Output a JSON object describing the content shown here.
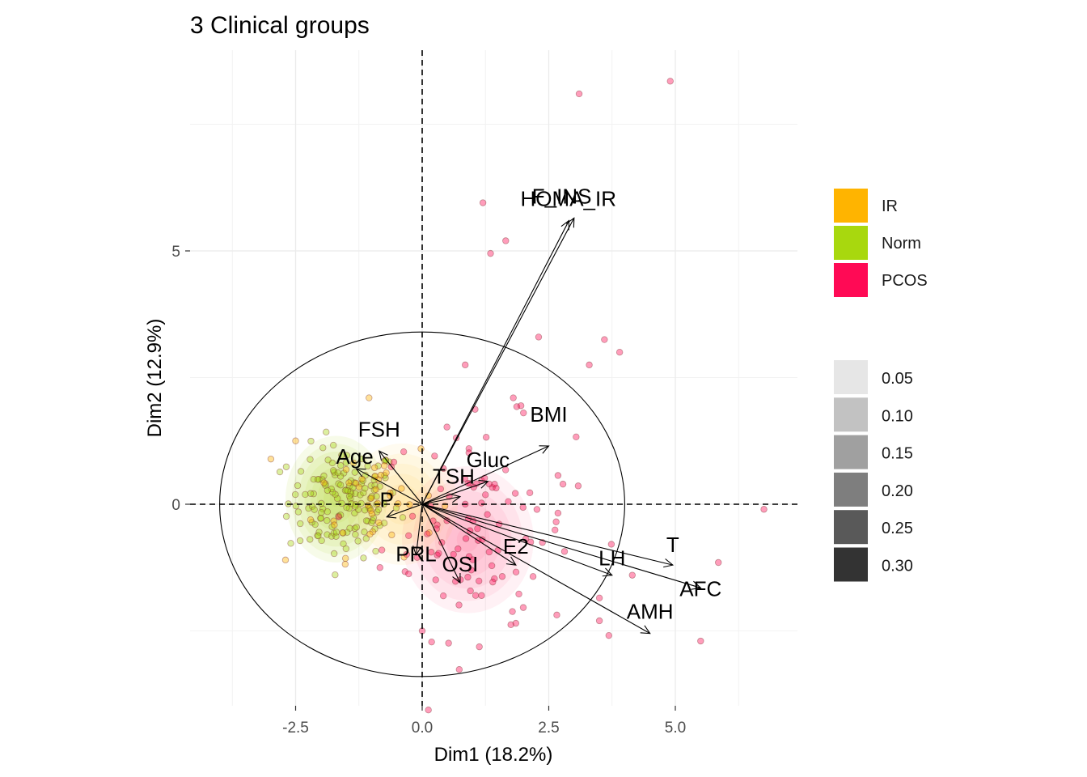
{
  "chart_data": {
    "type": "scatter",
    "title": "3 Clinical groups",
    "xlabel": "Dim1 (18.2%)",
    "ylabel": "Dim2 (12.9%)",
    "xlim": [
      -3.7,
      7.4
    ],
    "ylim": [
      -4.0,
      9.0
    ],
    "x_ticks": [
      -2.5,
      0.0,
      2.5,
      5.0
    ],
    "x_tick_labels": [
      "-2.5",
      "0.0",
      "2.5",
      "5.0"
    ],
    "y_ticks": [
      0,
      5
    ],
    "y_tick_labels": [
      "0",
      "5"
    ],
    "grid": true,
    "legend_position": "right",
    "correlation_circle": {
      "cx": 0.0,
      "cy": 0.0,
      "radius_x": 4.0,
      "radius_y": 3.4
    },
    "group_legend": [
      {
        "name": "IR",
        "color": "#FFB400"
      },
      {
        "name": "Norm",
        "color": "#A8D80E"
      },
      {
        "name": "PCOS",
        "color": "#FF0A55"
      }
    ],
    "density_legend": [
      {
        "level": "0.05",
        "color": "#e6e6e6"
      },
      {
        "level": "0.10",
        "color": "#c2c2c2"
      },
      {
        "level": "0.15",
        "color": "#a0a0a0"
      },
      {
        "level": "0.20",
        "color": "#7e7e7e"
      },
      {
        "level": "0.25",
        "color": "#595959"
      },
      {
        "level": "0.30",
        "color": "#333333"
      }
    ],
    "variables": [
      {
        "name": "HOMA_IR",
        "x": 2.9,
        "y": 5.6
      },
      {
        "name": "F_INS",
        "x": 3.0,
        "y": 5.65
      },
      {
        "name": "BMI",
        "x": 2.5,
        "y": 1.15
      },
      {
        "name": "Gluc",
        "x": 1.3,
        "y": 0.45
      },
      {
        "name": "TSH",
        "x": 0.75,
        "y": 0.15
      },
      {
        "name": "FSH",
        "x": -0.85,
        "y": 1.05
      },
      {
        "name": "Age",
        "x": -1.3,
        "y": 0.7
      },
      {
        "name": "P",
        "x": -0.7,
        "y": -0.25
      },
      {
        "name": "PRL",
        "x": -0.12,
        "y": -1.0
      },
      {
        "name": "OSI",
        "x": 0.75,
        "y": -1.55
      },
      {
        "name": "E2",
        "x": 1.85,
        "y": -1.2
      },
      {
        "name": "LH",
        "x": 3.75,
        "y": -1.4
      },
      {
        "name": "T",
        "x": 4.95,
        "y": -1.2
      },
      {
        "name": "AFC",
        "x": 5.5,
        "y": -1.65
      },
      {
        "name": "AMH",
        "x": 4.5,
        "y": -2.55
      }
    ],
    "outlier_points": [
      {
        "group": "PCOS",
        "x": 3.1,
        "y": 8.1
      },
      {
        "group": "PCOS",
        "x": 4.9,
        "y": 8.35
      },
      {
        "group": "PCOS",
        "x": 1.2,
        "y": 5.95
      },
      {
        "group": "PCOS",
        "x": 1.65,
        "y": 5.2
      },
      {
        "group": "PCOS",
        "x": 1.35,
        "y": 4.95
      },
      {
        "group": "PCOS",
        "x": 2.3,
        "y": 3.3
      },
      {
        "group": "PCOS",
        "x": 3.6,
        "y": 3.25
      },
      {
        "group": "PCOS",
        "x": 3.9,
        "y": 3.0
      },
      {
        "group": "PCOS",
        "x": 3.3,
        "y": 2.75
      },
      {
        "group": "PCOS",
        "x": 6.75,
        "y": -0.1
      },
      {
        "group": "PCOS",
        "x": 5.5,
        "y": -2.7
      },
      {
        "group": "PCOS",
        "x": 4.15,
        "y": -1.4
      },
      {
        "group": "PCOS",
        "x": 5.85,
        "y": -1.15
      },
      {
        "group": "IR",
        "x": -2.5,
        "y": 1.25
      },
      {
        "group": "IR",
        "x": -2.7,
        "y": -1.1
      },
      {
        "group": "IR",
        "x": -1.05,
        "y": 2.1
      },
      {
        "group": "PCOS",
        "x": 0.85,
        "y": 2.75
      },
      {
        "group": "PCOS",
        "x": 1.8,
        "y": 2.1
      },
      {
        "group": "PCOS",
        "x": 3.5,
        "y": -1.85
      },
      {
        "group": "PCOS",
        "x": 0.0,
        "y": -2.5
      },
      {
        "group": "PCOS",
        "x": 3.5,
        "y": -2.3
      },
      {
        "group": "PCOS",
        "x": 1.85,
        "y": -2.35
      }
    ]
  }
}
